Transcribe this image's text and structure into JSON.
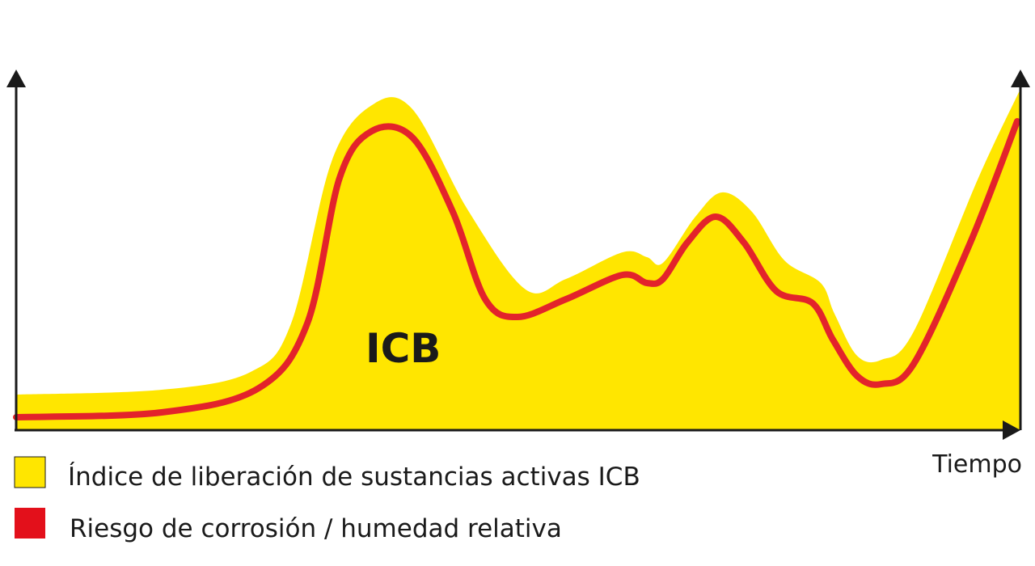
{
  "diagram": {
    "area_label": "ICB",
    "x_axis_label": "Tiempo",
    "legend": [
      {
        "label": "Índice de liberación de sustancias activas ICB"
      },
      {
        "label": "Riesgo de corrosión / humedad relativa"
      }
    ]
  }
}
